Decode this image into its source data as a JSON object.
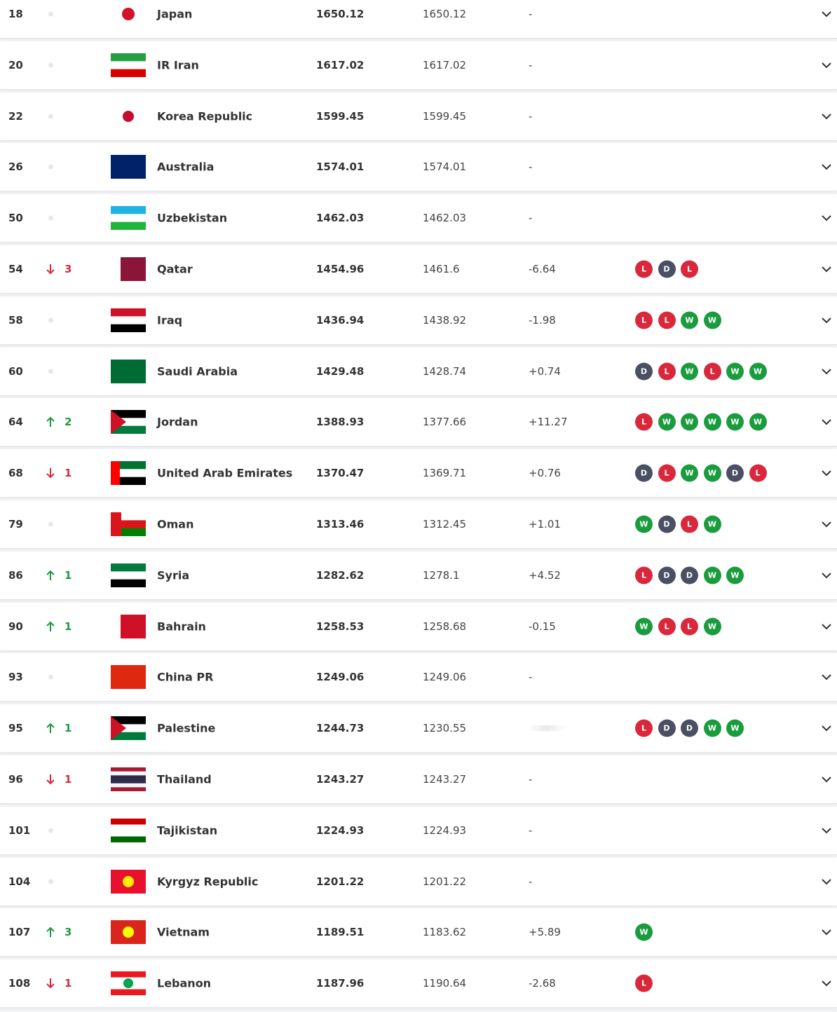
{
  "table": {
    "rows": [
      {
        "rank": 18,
        "movement": null,
        "team": "Japan",
        "points": 1650.12,
        "previous_points": 1650.12,
        "difference": "-",
        "form": []
      },
      {
        "rank": 20,
        "movement": null,
        "team": "IR Iran",
        "points": 1617.02,
        "previous_points": 1617.02,
        "difference": "-",
        "form": []
      },
      {
        "rank": 22,
        "movement": null,
        "team": "Korea Republic",
        "points": 1599.45,
        "previous_points": 1599.45,
        "difference": "-",
        "form": []
      },
      {
        "rank": 26,
        "movement": null,
        "team": "Australia",
        "points": 1574.01,
        "previous_points": 1574.01,
        "difference": "-",
        "form": []
      },
      {
        "rank": 50,
        "movement": null,
        "team": "Uzbekistan",
        "points": 1462.03,
        "previous_points": 1462.03,
        "difference": "-",
        "form": []
      },
      {
        "rank": 54,
        "movement": {
          "direction": "down",
          "value": 3
        },
        "team": "Qatar",
        "points": 1454.96,
        "previous_points": 1461.6,
        "difference": "-6.64",
        "form": [
          "L",
          "D",
          "L"
        ]
      },
      {
        "rank": 58,
        "movement": null,
        "team": "Iraq",
        "points": 1436.94,
        "previous_points": 1438.92,
        "difference": "-1.98",
        "form": [
          "L",
          "L",
          "W",
          "W"
        ]
      },
      {
        "rank": 60,
        "movement": null,
        "team": "Saudi Arabia",
        "points": 1429.48,
        "previous_points": 1428.74,
        "difference": "+0.74",
        "form": [
          "D",
          "L",
          "W",
          "L",
          "W",
          "W"
        ]
      },
      {
        "rank": 64,
        "movement": {
          "direction": "up",
          "value": 2
        },
        "team": "Jordan",
        "points": 1388.93,
        "previous_points": 1377.66,
        "difference": "+11.27",
        "form": [
          "L",
          "W",
          "W",
          "W",
          "W",
          "W"
        ]
      },
      {
        "rank": 68,
        "movement": {
          "direction": "down",
          "value": 1
        },
        "team": "United Arab Emirates",
        "points": 1370.47,
        "previous_points": 1369.71,
        "difference": "+0.76",
        "form": [
          "D",
          "L",
          "W",
          "W",
          "D",
          "L"
        ]
      },
      {
        "rank": 79,
        "movement": null,
        "team": "Oman",
        "points": 1313.46,
        "previous_points": 1312.45,
        "difference": "+1.01",
        "form": [
          "W",
          "D",
          "L",
          "W"
        ]
      },
      {
        "rank": 86,
        "movement": {
          "direction": "up",
          "value": 1
        },
        "team": "Syria",
        "points": 1282.62,
        "previous_points": 1278.1,
        "difference": "+4.52",
        "form": [
          "L",
          "D",
          "D",
          "W",
          "W"
        ]
      },
      {
        "rank": 90,
        "movement": {
          "direction": "up",
          "value": 1
        },
        "team": "Bahrain",
        "points": 1258.53,
        "previous_points": 1258.68,
        "difference": "-0.15",
        "form": [
          "W",
          "L",
          "L",
          "W"
        ]
      },
      {
        "rank": 93,
        "movement": null,
        "team": "China PR",
        "points": 1249.06,
        "previous_points": 1249.06,
        "difference": "-",
        "form": []
      },
      {
        "rank": 95,
        "movement": {
          "direction": "up",
          "value": 1
        },
        "team": "Palestine",
        "points": 1244.73,
        "previous_points": 1230.55,
        "difference": null,
        "form": [
          "L",
          "D",
          "D",
          "W",
          "W"
        ]
      },
      {
        "rank": 96,
        "movement": {
          "direction": "down",
          "value": 1
        },
        "team": "Thailand",
        "points": 1243.27,
        "previous_points": 1243.27,
        "difference": "-",
        "form": []
      },
      {
        "rank": 101,
        "movement": null,
        "team": "Tajikistan",
        "points": 1224.93,
        "previous_points": 1224.93,
        "difference": "-",
        "form": []
      },
      {
        "rank": 104,
        "movement": null,
        "team": "Kyrgyz Republic",
        "points": 1201.22,
        "previous_points": 1201.22,
        "difference": "-",
        "form": []
      },
      {
        "rank": 107,
        "movement": {
          "direction": "up",
          "value": 3
        },
        "team": "Vietnam",
        "points": 1189.51,
        "previous_points": 1183.62,
        "difference": "+5.89",
        "form": [
          "W"
        ]
      },
      {
        "rank": 108,
        "movement": {
          "direction": "down",
          "value": 1
        },
        "team": "Lebanon",
        "points": 1187.96,
        "previous_points": 1190.64,
        "difference": "-2.68",
        "form": [
          "L"
        ]
      }
    ]
  }
}
